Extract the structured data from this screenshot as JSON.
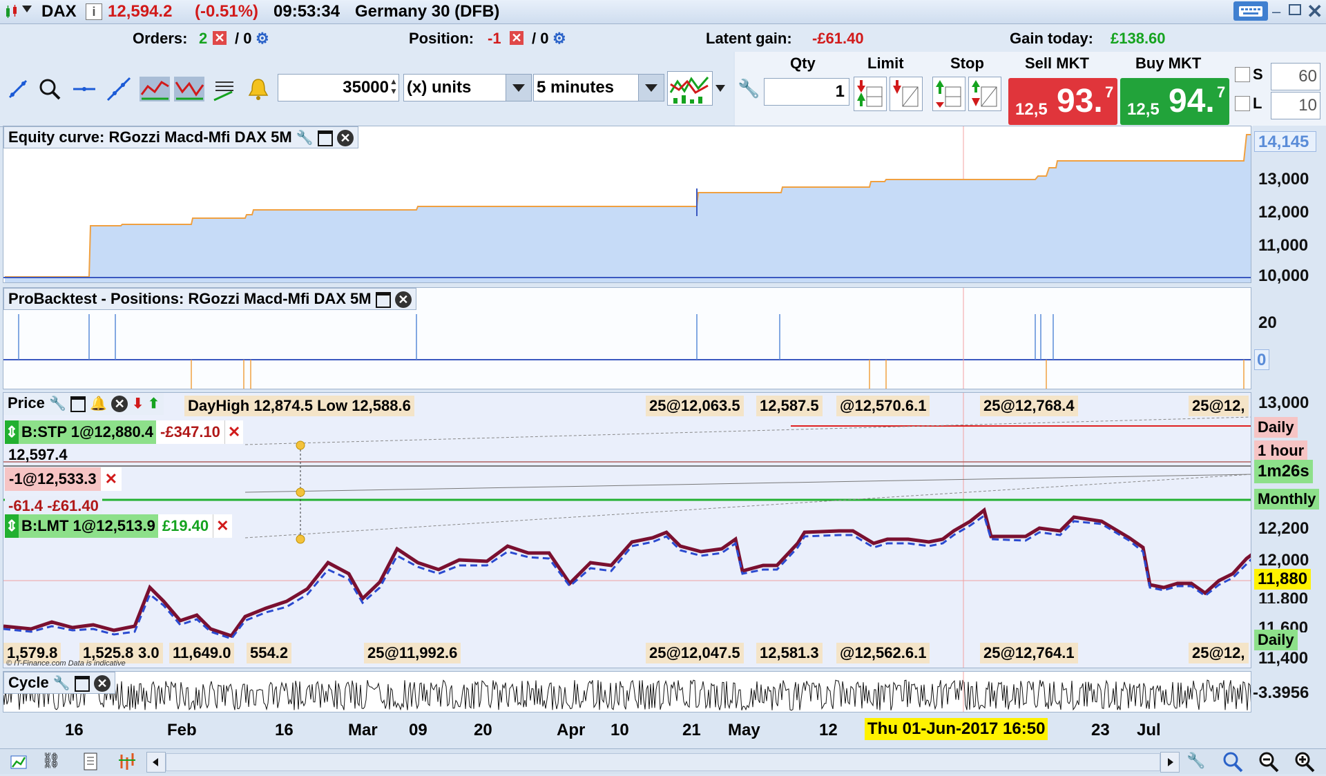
{
  "title": {
    "symbol": "DAX",
    "price": "12,594.2",
    "change": "(-0.51%)",
    "time": "09:53:34",
    "instrument": "Germany 30 (DFB)"
  },
  "info": {
    "orders_label": "Orders:",
    "orders_value": "2",
    "orders_zero": "/ 0",
    "position_label": "Position:",
    "position_value": "-1",
    "position_zero": "/ 0",
    "latent_label": "Latent gain:",
    "latent_value": "-£61.40",
    "gain_label": "Gain today:",
    "gain_value": "£138.60"
  },
  "toolbar": {
    "quantity": "35000",
    "units": "(x) units",
    "timeframe": "5 minutes"
  },
  "order_panel": {
    "qty_label": "Qty",
    "limit_label": "Limit",
    "stop_label": "Stop",
    "sell_label": "Sell MKT",
    "buy_label": "Buy MKT",
    "qty_value": "1",
    "sell_prefix": "12,5",
    "sell_big": "93.",
    "sell_sup": "7",
    "buy_prefix": "12,5",
    "buy_big": "94.",
    "buy_sup": "7",
    "s_label": "S",
    "s_value": "60",
    "l_label": "L",
    "l_value": "10",
    "sell_color": "#e0353b",
    "buy_color": "#22a33a"
  },
  "equity": {
    "title": "Equity curve: RGozzi Macd-Mfi DAX 5M",
    "y_labels": [
      "14,145",
      "13,000",
      "12,000",
      "11,000",
      "10,000"
    ],
    "line_color": "#f0a040",
    "fill_color": "#c6dbf7"
  },
  "positions": {
    "title": "ProBacktest - Positions: RGozzi Macd-Mfi DAX 5M",
    "y_labels": [
      "20",
      "0"
    ]
  },
  "price": {
    "title": "Price",
    "high_low_text": "DayHigh 12,874.5 Low 12,588.6",
    "top_tags": [
      "25@12,063.5",
      "12,587.5",
      "@12,570.6.1",
      "25@12,768.4",
      "25@12,"
    ],
    "bottom_tags": [
      "1,579.8",
      "1,525.8",
      "3.0",
      "11,649.0",
      "554.2",
      "25@11,992.6",
      "25@12,047.5",
      "12,581.3",
      "@12,562.6.1",
      "25@12,764.1",
      "25@12,"
    ],
    "stp_order": {
      "label": "B:STP 1@12,880.4",
      "pnl": "-£347.10"
    },
    "pos_order": {
      "label": "-1@12,533.3"
    },
    "pnl_text": "-61.4 -£61.40",
    "lmt_order": {
      "label": "B:LMT 1@12,513.9",
      "pnl": "£19.40"
    },
    "overlap_label": "12,597.4",
    "y_labels": [
      "13,000",
      "12,200",
      "12,000",
      "11,800",
      "11,600",
      "11,400"
    ],
    "right_tags": {
      "daily_top": "Daily",
      "one_hour": "1 hour",
      "countdown": "1m26s",
      "monthly": "Monthly",
      "low_price": "11,880",
      "daily_bottom": "Daily"
    },
    "copyright": "© IT-Finance.com  Data is indicative"
  },
  "cycle": {
    "title": "Cycle",
    "value": "-3.3956"
  },
  "x_axis": {
    "labels": [
      "16",
      "Feb",
      "16",
      "Mar",
      "09",
      "20",
      "Apr",
      "10",
      "21",
      "May",
      "12",
      "23",
      "Jul"
    ],
    "cursor_date": "Thu 01-Jun-2017 16:50"
  }
}
